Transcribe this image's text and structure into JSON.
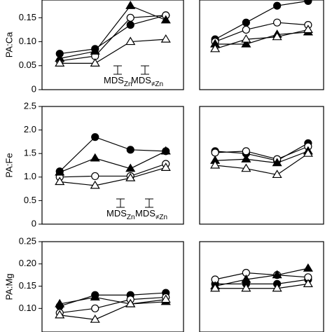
{
  "chart_data": [
    {
      "type": "line",
      "ylabel": "PA:Ca",
      "categories": [
        null,
        null,
        null,
        null
      ],
      "ylim": [
        0,
        0.187
      ],
      "yticks": [
        0,
        0.05,
        {
          "value": 0.1,
          "label": "0.10"
        },
        0.15
      ],
      "annotations": [
        {
          "text": "MDS",
          "sub": "Zn"
        },
        {
          "text": "MDS",
          "sub": "≠Zn"
        }
      ],
      "series": [
        {
          "marker": "circle",
          "filled": true,
          "color": "#000000",
          "values": [
            0.075,
            0.085,
            0.135,
            0.155
          ]
        },
        {
          "marker": "circle",
          "filled": false,
          "color": "#000000",
          "values": [
            0.06,
            0.07,
            0.15,
            0.155
          ]
        },
        {
          "marker": "triangle",
          "filled": true,
          "color": "#000000",
          "values": [
            0.065,
            0.08,
            0.175,
            0.145
          ]
        },
        {
          "marker": "triangle",
          "filled": false,
          "color": "#000000",
          "values": [
            0.055,
            0.055,
            0.1,
            0.105
          ]
        }
      ]
    },
    {
      "type": "line",
      "categories": [
        null,
        null,
        null,
        null
      ],
      "ylim": [
        0,
        0.187
      ],
      "series": [
        {
          "marker": "circle",
          "filled": true,
          "color": "#000000",
          "values": [
            0.105,
            0.14,
            0.175,
            0.185
          ]
        },
        {
          "marker": "circle",
          "filled": false,
          "color": "#000000",
          "values": [
            0.1,
            0.125,
            0.14,
            0.135
          ]
        },
        {
          "marker": "triangle",
          "filled": true,
          "color": "#000000",
          "values": [
            0.095,
            0.095,
            0.115,
            0.12
          ]
        },
        {
          "marker": "triangle",
          "filled": false,
          "color": "#000000",
          "values": [
            0.085,
            0.105,
            0.11,
            0.125
          ]
        }
      ]
    },
    {
      "type": "line",
      "ylabel": "PA:Fe",
      "categories": [
        null,
        null,
        null,
        null
      ],
      "ylim": [
        0,
        2.5
      ],
      "yticks": [
        0,
        0.5,
        {
          "value": 1,
          "label": "1.0"
        },
        1.5,
        {
          "value": 2,
          "label": "2.0"
        },
        2.5
      ],
      "annotations": [
        {
          "text": "MDS",
          "sub": "Zn"
        },
        {
          "text": "MDS",
          "sub": "≠Zn"
        }
      ],
      "series": [
        {
          "marker": "circle",
          "filled": true,
          "color": "#000000",
          "values": [
            1.12,
            1.85,
            1.58,
            1.55
          ]
        },
        {
          "marker": "circle",
          "filled": false,
          "color": "#000000",
          "values": [
            1.0,
            1.02,
            1.02,
            1.28
          ]
        },
        {
          "marker": "triangle",
          "filled": true,
          "color": "#000000",
          "values": [
            1.1,
            1.4,
            1.18,
            1.55
          ]
        },
        {
          "marker": "triangle",
          "filled": false,
          "color": "#000000",
          "values": [
            0.9,
            0.82,
            0.98,
            1.2
          ]
        }
      ]
    },
    {
      "type": "line",
      "categories": [
        null,
        null,
        null,
        null
      ],
      "ylim": [
        0,
        2.5
      ],
      "series": [
        {
          "marker": "circle",
          "filled": true,
          "color": "#000000",
          "values": [
            1.55,
            1.5,
            1.35,
            1.72
          ]
        },
        {
          "marker": "circle",
          "filled": false,
          "color": "#000000",
          "values": [
            1.52,
            1.55,
            1.38,
            1.65
          ]
        },
        {
          "marker": "triangle",
          "filled": true,
          "color": "#000000",
          "values": [
            1.35,
            1.38,
            1.3,
            1.55
          ]
        },
        {
          "marker": "triangle",
          "filled": false,
          "color": "#000000",
          "values": [
            1.25,
            1.18,
            1.05,
            1.5
          ]
        }
      ]
    },
    {
      "type": "line",
      "ylabel": "PA:Mg",
      "categories": [
        null,
        null,
        null,
        null
      ],
      "ylim": [
        0.047,
        0.25
      ],
      "yticks": [
        {
          "value": 0.1,
          "label": "0.10"
        },
        0.15,
        {
          "value": 0.2,
          "label": "0.20"
        },
        0.25
      ],
      "series": [
        {
          "marker": "circle",
          "filled": true,
          "color": "#000000",
          "values": [
            0.105,
            0.13,
            0.13,
            0.135
          ]
        },
        {
          "marker": "circle",
          "filled": false,
          "color": "#000000",
          "values": [
            0.09,
            0.1,
            0.12,
            0.125
          ]
        },
        {
          "marker": "triangle",
          "filled": true,
          "color": "#000000",
          "values": [
            0.11,
            0.125,
            0.11,
            0.115
          ]
        },
        {
          "marker": "triangle",
          "filled": false,
          "color": "#000000",
          "values": [
            0.085,
            0.075,
            0.11,
            0.12
          ]
        }
      ]
    },
    {
      "type": "line",
      "categories": [
        null,
        null,
        null,
        null
      ],
      "ylim": [
        0.047,
        0.25
      ],
      "series": [
        {
          "marker": "circle",
          "filled": true,
          "color": "#000000",
          "values": [
            0.155,
            0.155,
            0.155,
            0.165
          ]
        },
        {
          "marker": "circle",
          "filled": false,
          "color": "#000000",
          "values": [
            0.165,
            0.18,
            0.175,
            0.17
          ]
        },
        {
          "marker": "triangle",
          "filled": true,
          "color": "#000000",
          "values": [
            0.15,
            0.165,
            0.175,
            0.19
          ]
        },
        {
          "marker": "triangle",
          "filled": false,
          "color": "#000000",
          "values": [
            0.145,
            0.145,
            0.145,
            0.155
          ]
        }
      ]
    }
  ]
}
